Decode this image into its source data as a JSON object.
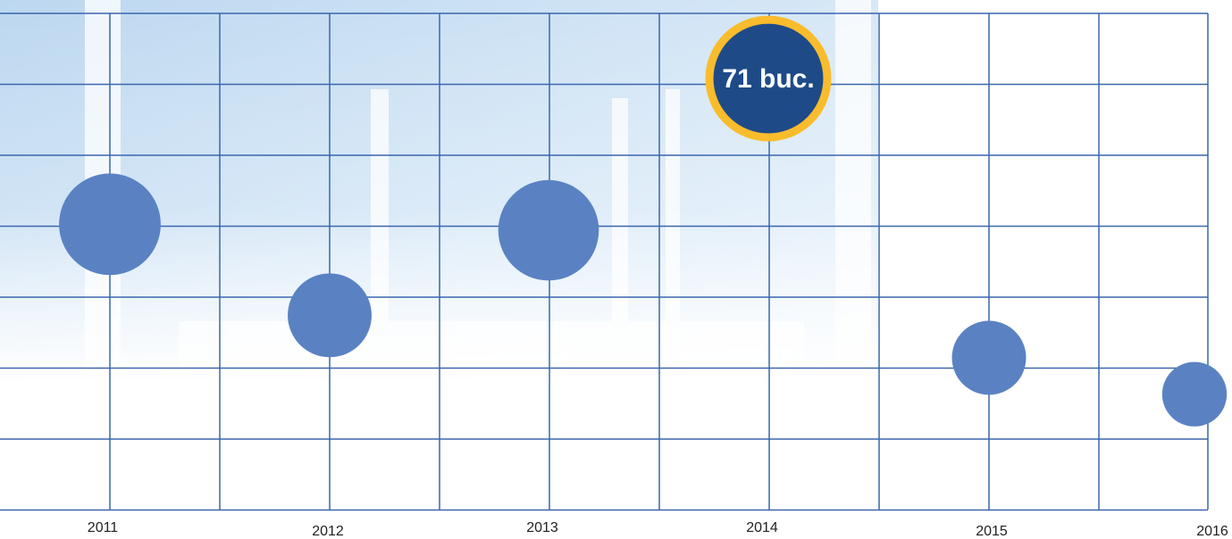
{
  "chart_data": {
    "type": "bubble",
    "categories": [
      "2011",
      "2012",
      "2013",
      "2014",
      "2015",
      "2016"
    ],
    "values": [
      47,
      32,
      46,
      71,
      25,
      19
    ],
    "value_labels": [
      null,
      null,
      null,
      "71 buc.",
      null,
      null
    ],
    "color": "#5a82c3",
    "highlight_fill": "#1e4b88",
    "highlight_ring": "#f9bc2c",
    "grid": true
  }
}
